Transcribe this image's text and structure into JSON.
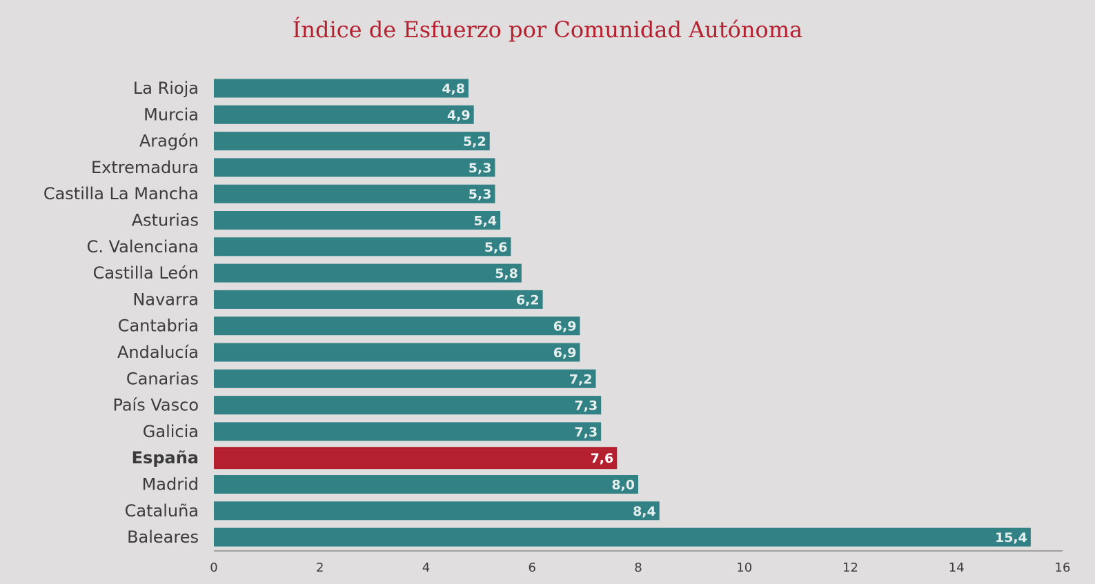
{
  "chart_data": {
    "type": "bar",
    "orientation": "horizontal",
    "title": "Índice de Esfuerzo por Comunidad Autónoma",
    "categories": [
      "La Rioja",
      "Murcia",
      "Aragón",
      "Extremadura",
      "Castilla La Mancha",
      "Asturias",
      "C. Valenciana",
      "Castilla León",
      "Navarra",
      "Cantabria",
      "Andalucía",
      "Canarias",
      "País Vasco",
      "Galicia",
      "España",
      "Madrid",
      "Cataluña",
      "Baleares"
    ],
    "values": [
      4.8,
      4.9,
      5.2,
      5.3,
      5.3,
      5.4,
      5.6,
      5.8,
      6.2,
      6.9,
      6.9,
      7.2,
      7.3,
      7.3,
      7.6,
      8.0,
      8.4,
      15.4
    ],
    "value_labels": [
      "4,8",
      "4,9",
      "5,2",
      "5,3",
      "5,3",
      "5,4",
      "5,6",
      "5,8",
      "6,2",
      "6,9",
      "6,9",
      "7,2",
      "7,3",
      "7,3",
      "7,6",
      "8,0",
      "8,4",
      "15,4"
    ],
    "highlight": "España",
    "xlim": [
      0,
      16
    ],
    "xticks": [
      0,
      2,
      4,
      6,
      8,
      10,
      12,
      14,
      16
    ],
    "grid": false,
    "legend": "none",
    "xlabel": "",
    "ylabel": "",
    "colors": {
      "bar": "#328185",
      "highlight": "#b5202f",
      "title": "#b5202f",
      "axis": "#8a8a8a",
      "background": "#e0dedf"
    }
  }
}
